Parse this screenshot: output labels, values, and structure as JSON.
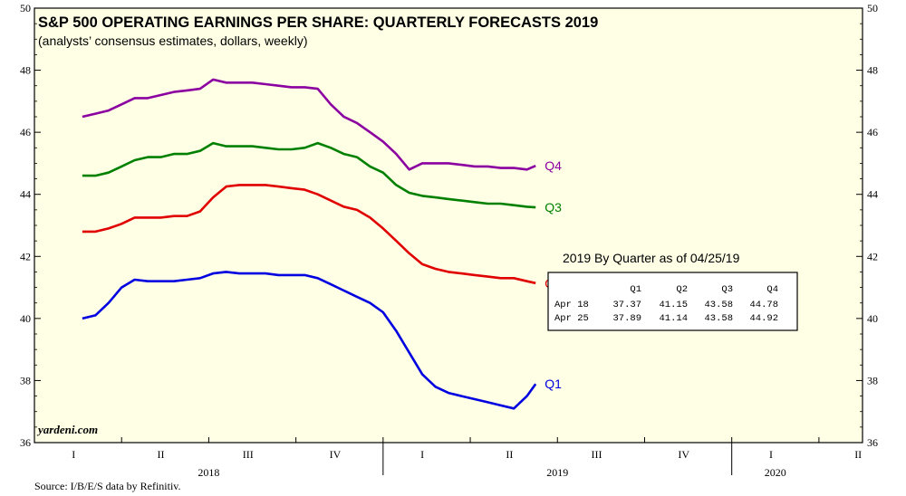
{
  "chart_data": {
    "type": "line",
    "title": "S&P 500 OPERATING EARNINGS PER SHARE: QUARTERLY FORECASTS 2019",
    "subtitle": "(analysts’ consensus estimates, dollars, weekly)",
    "ylim": [
      36,
      50
    ],
    "yticks": [
      "36",
      "38",
      "40",
      "42",
      "44",
      "46",
      "48",
      "50"
    ],
    "xlim": [
      0,
      9
    ],
    "quarter_labels": [
      "I",
      "II",
      "III",
      "IV",
      "I",
      "II",
      "III",
      "IV",
      "I",
      "II"
    ],
    "year_labels": [
      {
        "label": "2018",
        "x": 2.0
      },
      {
        "label": "2019",
        "x": 6.0
      },
      {
        "label": "2020",
        "x": 8.5
      }
    ],
    "series": [
      {
        "name": "Q4",
        "color": "#8b00a0",
        "x": [
          0.55,
          0.7,
          0.85,
          1.0,
          1.15,
          1.3,
          1.45,
          1.6,
          1.75,
          1.9,
          2.05,
          2.2,
          2.35,
          2.5,
          2.65,
          2.8,
          2.95,
          3.1,
          3.25,
          3.4,
          3.55,
          3.7,
          3.85,
          4.0,
          4.15,
          4.3,
          4.45,
          4.6,
          4.75,
          4.9,
          5.05,
          5.2,
          5.35,
          5.5,
          5.65,
          5.75
        ],
        "values": [
          46.5,
          46.6,
          46.7,
          46.9,
          47.1,
          47.1,
          47.2,
          47.3,
          47.35,
          47.4,
          47.7,
          47.6,
          47.6,
          47.6,
          47.55,
          47.5,
          47.45,
          47.45,
          47.4,
          46.9,
          46.5,
          46.3,
          46.0,
          45.7,
          45.3,
          44.8,
          45.0,
          45.0,
          45.0,
          44.95,
          44.9,
          44.9,
          44.85,
          44.85,
          44.8,
          44.92
        ]
      },
      {
        "name": "Q3",
        "color": "#008000",
        "x": [
          0.55,
          0.7,
          0.85,
          1.0,
          1.15,
          1.3,
          1.45,
          1.6,
          1.75,
          1.9,
          2.05,
          2.2,
          2.35,
          2.5,
          2.65,
          2.8,
          2.95,
          3.1,
          3.25,
          3.4,
          3.55,
          3.7,
          3.85,
          4.0,
          4.15,
          4.3,
          4.45,
          4.6,
          4.75,
          4.9,
          5.05,
          5.2,
          5.35,
          5.5,
          5.65,
          5.75
        ],
        "values": [
          44.6,
          44.6,
          44.7,
          44.9,
          45.1,
          45.2,
          45.2,
          45.3,
          45.3,
          45.4,
          45.65,
          45.55,
          45.55,
          45.55,
          45.5,
          45.45,
          45.45,
          45.5,
          45.65,
          45.5,
          45.3,
          45.2,
          44.9,
          44.7,
          44.3,
          44.05,
          43.95,
          43.9,
          43.85,
          43.8,
          43.75,
          43.7,
          43.7,
          43.65,
          43.6,
          43.58
        ]
      },
      {
        "name": "Q2",
        "color": "#e00000",
        "x": [
          0.55,
          0.7,
          0.85,
          1.0,
          1.15,
          1.3,
          1.45,
          1.6,
          1.75,
          1.9,
          2.05,
          2.2,
          2.35,
          2.5,
          2.65,
          2.8,
          2.95,
          3.1,
          3.25,
          3.4,
          3.55,
          3.7,
          3.85,
          4.0,
          4.15,
          4.3,
          4.45,
          4.6,
          4.75,
          4.9,
          5.05,
          5.2,
          5.35,
          5.5,
          5.65,
          5.75
        ],
        "values": [
          42.8,
          42.8,
          42.9,
          43.05,
          43.25,
          43.25,
          43.25,
          43.3,
          43.3,
          43.45,
          43.9,
          44.25,
          44.3,
          44.3,
          44.3,
          44.25,
          44.2,
          44.15,
          44.0,
          43.8,
          43.6,
          43.5,
          43.25,
          42.9,
          42.5,
          42.1,
          41.75,
          41.6,
          41.5,
          41.45,
          41.4,
          41.35,
          41.3,
          41.3,
          41.2,
          41.14
        ]
      },
      {
        "name": "Q1",
        "color": "#0000e0",
        "x": [
          0.55,
          0.7,
          0.85,
          1.0,
          1.15,
          1.3,
          1.45,
          1.6,
          1.75,
          1.9,
          2.05,
          2.2,
          2.35,
          2.5,
          2.65,
          2.8,
          2.95,
          3.1,
          3.25,
          3.4,
          3.55,
          3.7,
          3.85,
          4.0,
          4.15,
          4.3,
          4.45,
          4.6,
          4.75,
          4.9,
          5.05,
          5.2,
          5.35,
          5.5,
          5.65,
          5.75
        ],
        "values": [
          40.0,
          40.1,
          40.5,
          41.0,
          41.25,
          41.2,
          41.2,
          41.2,
          41.25,
          41.3,
          41.45,
          41.5,
          41.45,
          41.45,
          41.45,
          41.4,
          41.4,
          41.4,
          41.3,
          41.1,
          40.9,
          40.7,
          40.5,
          40.2,
          39.6,
          38.9,
          38.2,
          37.8,
          37.6,
          37.5,
          37.4,
          37.3,
          37.2,
          37.1,
          37.5,
          37.89
        ]
      }
    ],
    "table": {
      "title": "2019 By Quarter as of 04/25/19",
      "columns": [
        "",
        "Q1",
        "Q2",
        "Q3",
        "Q4"
      ],
      "rows": [
        [
          "Apr 18",
          "37.37",
          "41.15",
          "43.58",
          "44.78"
        ],
        [
          "Apr 25",
          "37.89",
          "41.14",
          "43.58",
          "44.92"
        ]
      ]
    },
    "plot_background": "#ffffe5",
    "grid": false
  },
  "brand": "yardeni.com",
  "source": "Source: I/B/E/S data by Refinitiv."
}
